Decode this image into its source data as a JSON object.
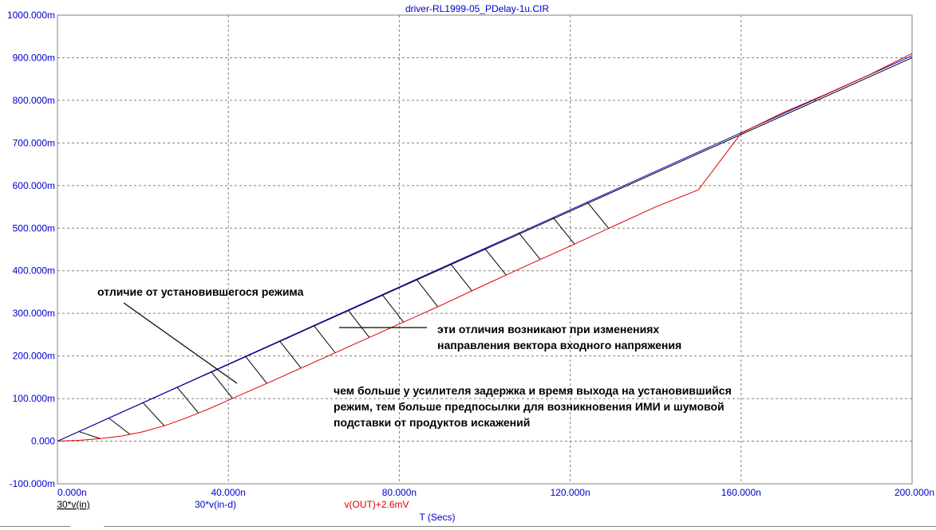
{
  "window": {
    "title": "driver-RL1999-05_PDelay-1u.CIR"
  },
  "colors": {
    "axis_text": "#0000cc",
    "grid": "#808080",
    "in": "#000000",
    "in_d": "#0000cc",
    "out": "#dd0000",
    "hatch": "#000000"
  },
  "chart_data": {
    "type": "line",
    "title": "driver-RL1999-05_PDelay-1u.CIR",
    "xlabel": "T (Secs)",
    "ylabel": "",
    "xlim": [
      0,
      200
    ],
    "ylim": [
      -100,
      1000
    ],
    "x_unit": "ns",
    "y_unit": "mV",
    "grid": true,
    "x_ticks": [
      0,
      40,
      80,
      120,
      160,
      200
    ],
    "y_ticks": [
      -100,
      0,
      100,
      200,
      300,
      400,
      500,
      600,
      700,
      800,
      900,
      1000
    ],
    "x_tick_labels": [
      "0.000n",
      "40.000n",
      "80.000n",
      "120.000n",
      "160.000n",
      "200.000n"
    ],
    "y_tick_labels": [
      "-100.000m",
      "0.000",
      "100.000m",
      "200.000m",
      "300.000m",
      "400.000m",
      "500.000m",
      "600.000m",
      "700.000m",
      "800.000m",
      "900.000m",
      "1000.000m"
    ],
    "series": [
      {
        "name": "30*v(in)",
        "color": "#000000",
        "x": [
          0,
          200
        ],
        "y": [
          0,
          900
        ]
      },
      {
        "name": "30*v(in-d)",
        "color": "#0000cc",
        "x": [
          0,
          200
        ],
        "y": [
          0,
          905
        ]
      },
      {
        "name": "v(OUT)+2.6mV",
        "color": "#dd0000",
        "x": [
          0,
          5,
          10,
          15,
          20,
          25,
          30,
          35,
          40,
          45,
          50,
          60,
          70,
          80,
          90,
          100,
          110,
          120,
          130,
          140,
          150,
          160,
          170,
          180,
          190,
          200
        ],
        "y": [
          0,
          2,
          6,
          12,
          22,
          36,
          54,
          74,
          96,
          118,
          140,
          185,
          230,
          275,
          320,
          367,
          413,
          458,
          504,
          550,
          590,
          723,
          772,
          815,
          860,
          910
        ]
      }
    ],
    "hatch_x": [
      5,
      12,
      20,
      28,
      36,
      44,
      52,
      60,
      68,
      76,
      84,
      92,
      100,
      108,
      116,
      124
    ],
    "annotations": [
      "отличие от установившегося режима",
      "эти отличия возникают при изменениях",
      "направления вектора входного напряжения",
      "чем больше у усилителя задержка и время выхода на установившийся",
      "режим, тем больше предпосылки для возникновения ИМИ и шумовой",
      "подставки от продуктов искажений"
    ]
  }
}
